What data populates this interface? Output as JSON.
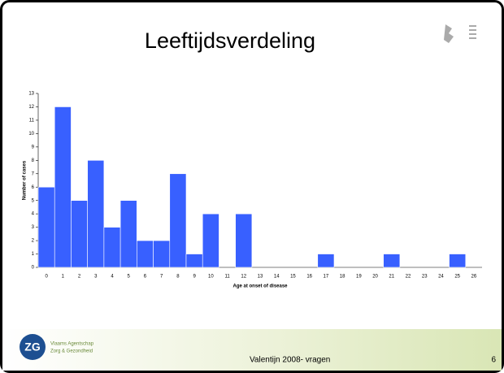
{
  "chart_data": {
    "type": "bar",
    "title": "Leeftijdsverdeling",
    "x_label": "Age at onset of disease",
    "y_label": "Number of cases",
    "categories": [
      "0",
      "1",
      "2",
      "3",
      "4",
      "5",
      "6",
      "7",
      "8",
      "9",
      "10",
      "11",
      "12",
      "13",
      "14",
      "15",
      "16",
      "17",
      "18",
      "19",
      "20",
      "21",
      "22",
      "23",
      "24",
      "25",
      "26"
    ],
    "values": [
      6,
      12,
      5,
      8,
      3,
      5,
      2,
      2,
      7,
      1,
      4,
      0,
      4,
      0,
      0,
      0,
      0,
      1,
      0,
      0,
      0,
      1,
      0,
      0,
      0,
      1,
      0
    ],
    "color": "#3860ff",
    "ylim": [
      0,
      13
    ],
    "yticks": [
      0,
      1,
      2,
      3,
      4,
      5,
      6,
      7,
      8,
      9,
      10,
      11,
      12,
      13
    ],
    "grid": false
  },
  "footer": {
    "text": "Valentijn 2008-  vragen",
    "page": "6",
    "logo": "ZG",
    "org_line1": "Vlaams Agentschap",
    "org_line2": "Zorg & Gezondheid"
  }
}
